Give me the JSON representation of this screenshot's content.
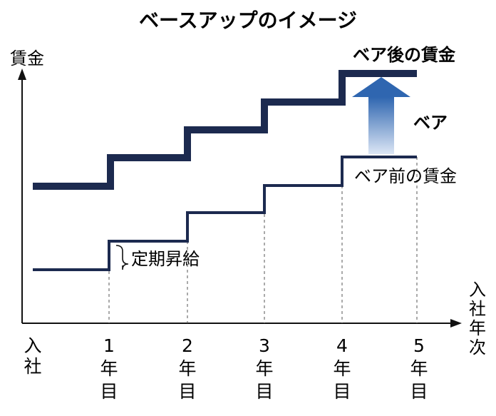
{
  "title": "ベースアップのイメージ",
  "y_axis_label": "賃金",
  "x_axis_label": [
    "入",
    "社",
    "年",
    "次"
  ],
  "labels": {
    "after_wage": "ベア後の賃金",
    "base_up": "ベア",
    "before_wage": "ベア前の賃金",
    "regular_raise": "定期昇給"
  },
  "ticks": [
    {
      "lines": [
        "入",
        "社"
      ]
    },
    {
      "lines": [
        "1",
        "年",
        "目"
      ]
    },
    {
      "lines": [
        "2",
        "年",
        "目"
      ]
    },
    {
      "lines": [
        "3",
        "年",
        "目"
      ]
    },
    {
      "lines": [
        "4",
        "年",
        "目"
      ]
    },
    {
      "lines": [
        "5",
        "年",
        "目"
      ]
    }
  ],
  "colors": {
    "line": "#1c2a4f",
    "axis": "#111111",
    "arrow_top": "#2f66b0",
    "arrow_bottom": "#dce6f5"
  },
  "chart_data": {
    "type": "line",
    "x": [
      "入社",
      "1年目",
      "2年目",
      "3年目",
      "4年目",
      "5年目"
    ],
    "series": [
      {
        "name": "ベア後の賃金",
        "values": [
          1,
          2,
          3,
          4,
          5,
          5
        ]
      },
      {
        "name": "ベア前の賃金",
        "values": [
          0,
          1,
          2,
          3,
          4,
          4
        ]
      }
    ]
  }
}
